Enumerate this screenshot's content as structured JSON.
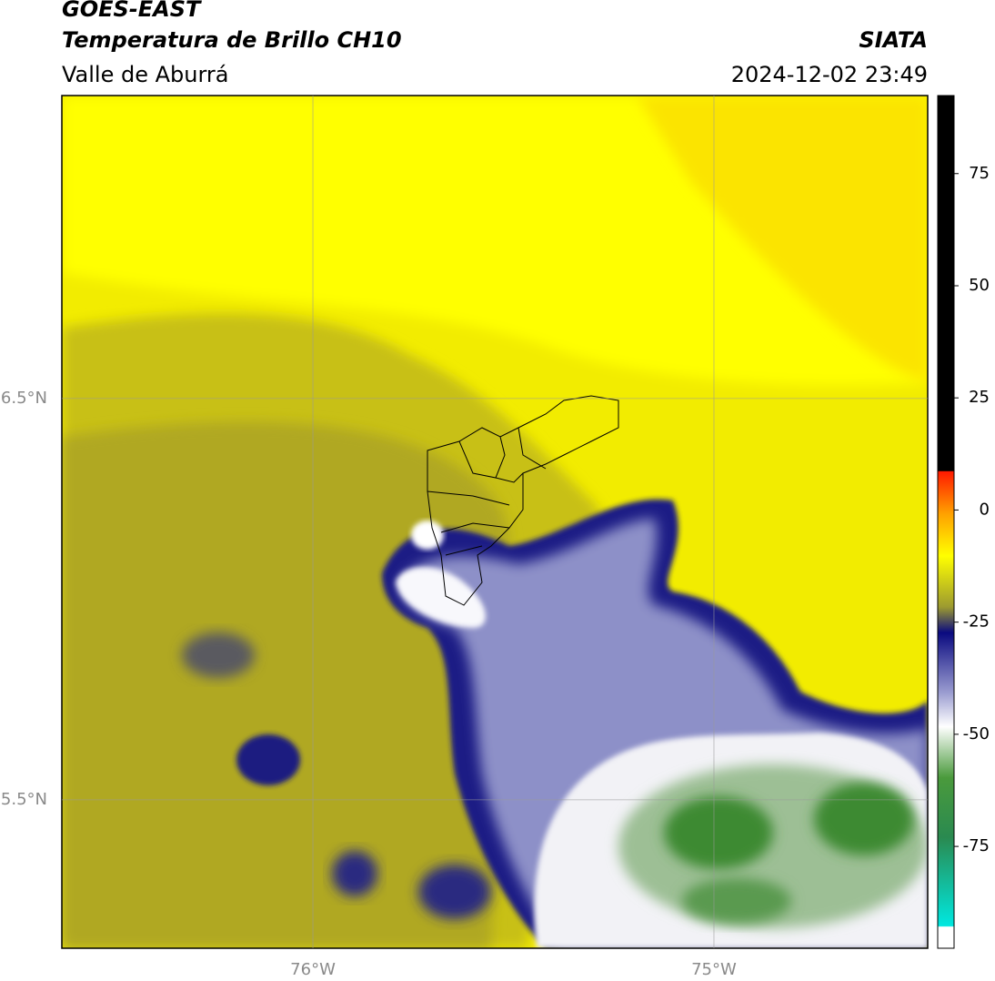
{
  "header": {
    "satellite": "GOES-EAST",
    "product": "Temperatura de Brillo CH10",
    "region": "Valle de Aburrá",
    "agency": "SIATA",
    "datetime": "2024-12-02 23:49"
  },
  "map": {
    "xlim": [
      -76.626,
      -74.467
    ],
    "ylim": [
      5.13,
      7.255
    ],
    "xticks": [
      {
        "value": -76,
        "label": "76°W"
      },
      {
        "value": -75,
        "label": "75°W"
      }
    ],
    "yticks": [
      {
        "value": 5.5,
        "label": "5.5°N"
      },
      {
        "value": 6.5,
        "label": "6.5°N"
      }
    ]
  },
  "colorbar": {
    "lim": [
      -97.7,
      92.4
    ],
    "ticks": [
      -75,
      -50,
      -25,
      0,
      25,
      50,
      75
    ]
  }
}
